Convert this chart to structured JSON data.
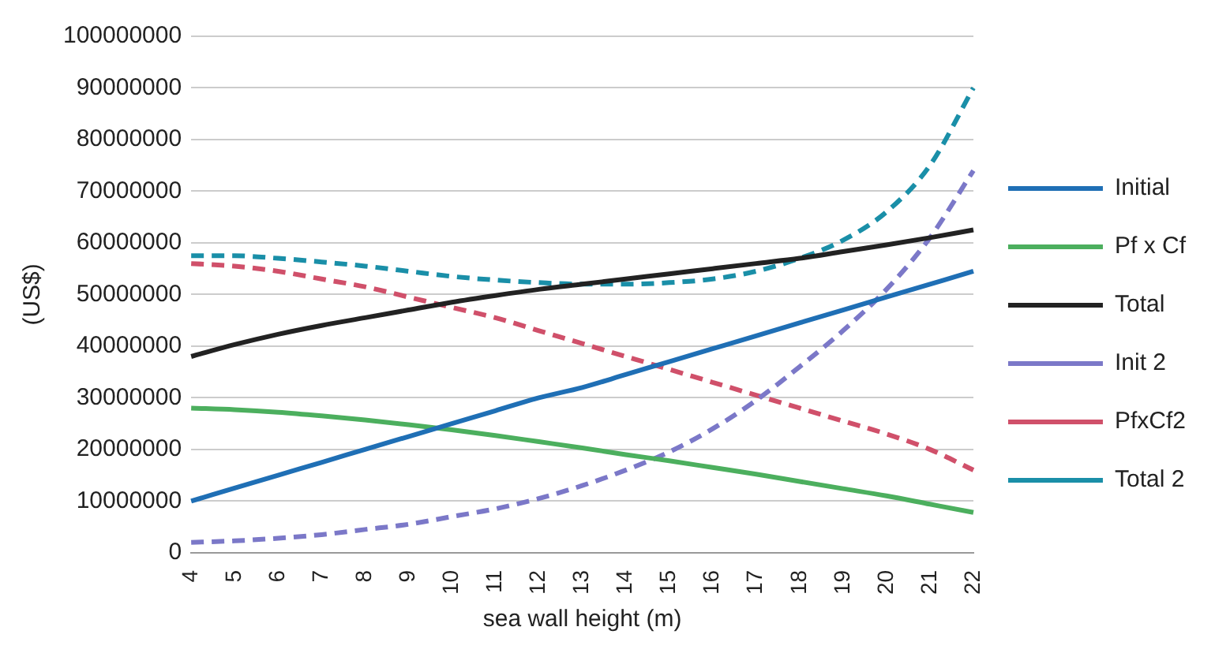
{
  "chart_data": {
    "type": "line",
    "xlabel": "sea wall height (m)",
    "ylabel": "(US$)",
    "categories": [
      "4",
      "5",
      "6",
      "7",
      "8",
      "9",
      "10",
      "11",
      "12",
      "13",
      "14",
      "15",
      "16",
      "17",
      "18",
      "19",
      "20",
      "21",
      "22"
    ],
    "ylim": [
      0,
      100000000
    ],
    "yticks": [
      0,
      10000000,
      20000000,
      30000000,
      40000000,
      50000000,
      60000000,
      70000000,
      80000000,
      90000000,
      100000000
    ],
    "grid": "y",
    "legend": "right",
    "marker": "none",
    "series": [
      {
        "name": "Initial",
        "color": "#1f6fb5",
        "line_style": "solid",
        "values": [
          10000000,
          12500000,
          15000000,
          17500000,
          20000000,
          22500000,
          25000000,
          27500000,
          30000000,
          32000000,
          34500000,
          37000000,
          39500000,
          42000000,
          44500000,
          47000000,
          49500000,
          52000000,
          54500000
        ]
      },
      {
        "name": "Pf x Cf",
        "color": "#4caf5e",
        "line_style": "solid",
        "values": [
          28000000,
          27700000,
          27200000,
          26500000,
          25700000,
          24800000,
          23800000,
          22700000,
          21500000,
          20300000,
          19000000,
          17800000,
          16500000,
          15200000,
          13800000,
          12400000,
          11000000,
          9400000,
          7800000
        ]
      },
      {
        "name": "Total",
        "color": "#222222",
        "line_style": "solid",
        "values": [
          38000000,
          40300000,
          42300000,
          44000000,
          45500000,
          47000000,
          48500000,
          49800000,
          51000000,
          52000000,
          53000000,
          54000000,
          55000000,
          56000000,
          57000000,
          58300000,
          59600000,
          61000000,
          62500000
        ]
      },
      {
        "name": "Init 2",
        "color": "#7b78c8",
        "line_style": "dashed",
        "values": [
          2000000,
          2300000,
          2800000,
          3500000,
          4500000,
          5500000,
          7000000,
          8500000,
          10500000,
          13000000,
          16000000,
          19500000,
          24000000,
          29500000,
          36000000,
          43000000,
          51000000,
          61000000,
          74000000
        ]
      },
      {
        "name": "PfxCf2",
        "color": "#d0506a",
        "line_style": "dashed",
        "values": [
          56000000,
          55500000,
          54500000,
          53000000,
          51500000,
          49500000,
          47500000,
          45500000,
          43000000,
          40500000,
          38000000,
          35500000,
          33000000,
          30500000,
          28000000,
          25500000,
          23000000,
          20000000,
          16000000
        ]
      },
      {
        "name": "Total 2",
        "color": "#1a8fa8",
        "line_style": "dashed",
        "values": [
          57500000,
          57500000,
          57000000,
          56300000,
          55500000,
          54500000,
          53500000,
          52800000,
          52300000,
          52000000,
          52000000,
          52300000,
          53000000,
          54500000,
          57000000,
          60500000,
          66000000,
          75000000,
          90000000
        ]
      }
    ]
  }
}
